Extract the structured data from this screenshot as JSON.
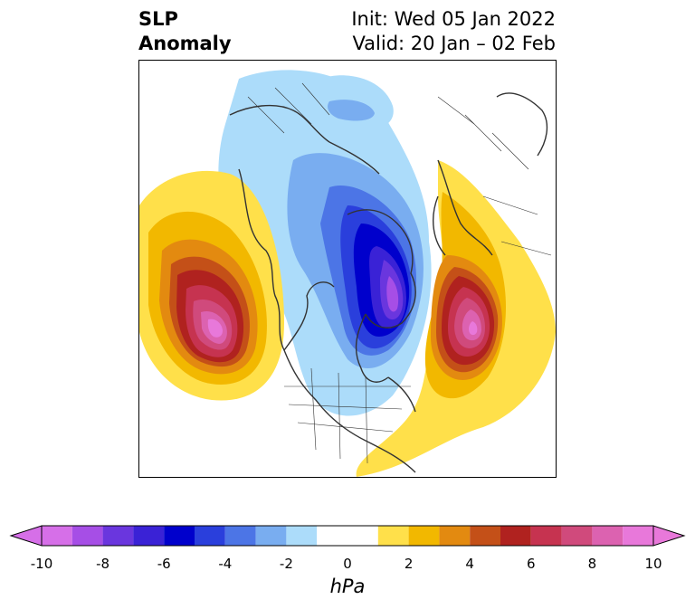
{
  "title": {
    "left_line1": "SLP",
    "left_line2": "Anomaly",
    "right_line1": "Init: Wed 05 Jan 2022",
    "right_line2": "Valid: 20 Jan – 02 Feb"
  },
  "map": {
    "projection": "polar stereographic (North Pole)",
    "field": "sea level pressure anomaly"
  },
  "colorbar": {
    "unit": "hPa",
    "ticks": [
      "-10",
      "-8",
      "-6",
      "-4",
      "-2",
      "0",
      "2",
      "4",
      "6",
      "8",
      "10"
    ],
    "levels": [
      -10,
      -9,
      -8,
      -7,
      -6,
      -5,
      -4,
      -3,
      -2,
      -1,
      1,
      2,
      3,
      4,
      5,
      6,
      7,
      8,
      9,
      10
    ],
    "colors": [
      "#d66fe8",
      "#a64ee6",
      "#6a36de",
      "#3a22d6",
      "#0000cc",
      "#2a3fdc",
      "#4c75e6",
      "#79adf0",
      "#acdcfa",
      "#ffffff",
      "#ffe04a",
      "#f2b800",
      "#e38a10",
      "#c45018",
      "#b0221f",
      "#c63350",
      "#d04a7c",
      "#dc62b0",
      "#e878da"
    ],
    "extend": "both"
  }
}
